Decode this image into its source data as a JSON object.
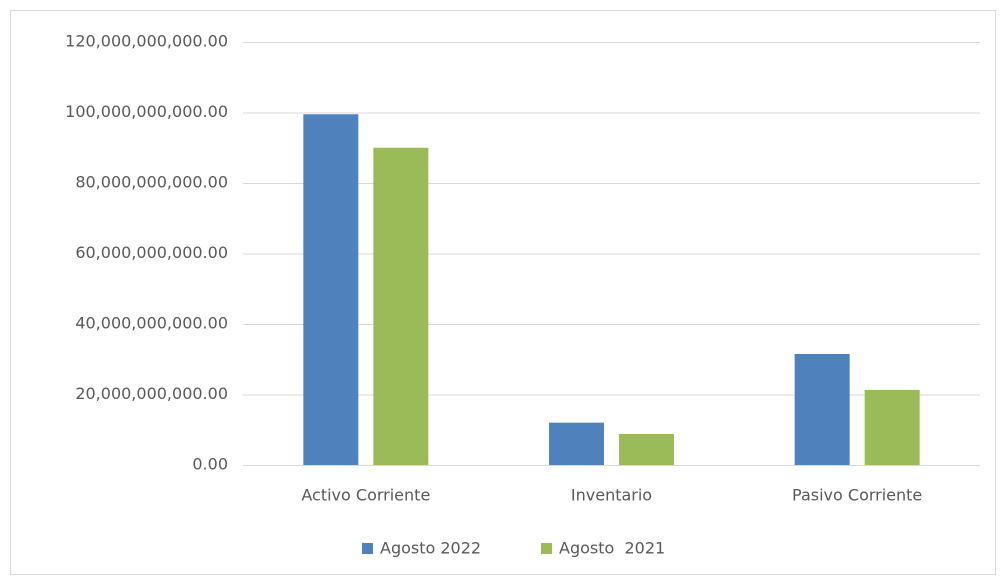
{
  "chart_data": {
    "type": "bar",
    "categories": [
      "Activo Corriente",
      "Inventario",
      "Pasivo Corriente"
    ],
    "series": [
      {
        "name": "Agosto 2022",
        "color": "#4f81bd",
        "values": [
          99500000000,
          12000000000,
          31500000000
        ]
      },
      {
        "name": "Agosto  2021",
        "color": "#9bbb59",
        "values": [
          90000000000,
          8800000000,
          21300000000
        ]
      }
    ],
    "ylim": [
      0,
      120000000000
    ],
    "yticks": [
      {
        "value": 0,
        "label": "0.00"
      },
      {
        "value": 20000000000,
        "label": "20,000,000,000.00"
      },
      {
        "value": 40000000000,
        "label": "40,000,000,000.00"
      },
      {
        "value": 60000000000,
        "label": "60,000,000,000.00"
      },
      {
        "value": 80000000000,
        "label": "80,000,000,000.00"
      },
      {
        "value": 100000000000,
        "label": "100,000,000,000.00"
      },
      {
        "value": 120000000000,
        "label": "120,000,000,000.00"
      }
    ],
    "grid": true,
    "legend": "bottom"
  }
}
